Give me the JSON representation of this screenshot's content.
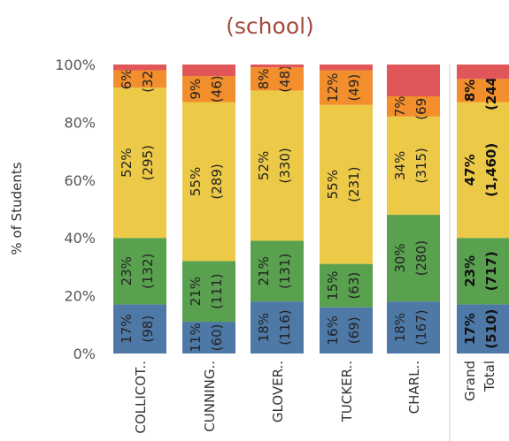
{
  "chart_data": {
    "type": "bar",
    "stacked": "percent",
    "title": "(school)",
    "ylabel": "% of Students",
    "ylim": [
      0,
      100
    ],
    "yticks": [
      "0%",
      "20%",
      "40%",
      "60%",
      "80%",
      "100%"
    ],
    "categories": [
      "COLLICOT..",
      "CUNNING..",
      "GLOVER..",
      "TUCKER..",
      "CHARL.."
    ],
    "total_label": [
      "Grand",
      "Total"
    ],
    "series_colors": [
      "#4e79a7",
      "#59a14f",
      "#edc948",
      "#f28e2b",
      "#e15759"
    ],
    "bars": [
      {
        "segments": [
          {
            "pct": 17,
            "label": "17%",
            "count": "(98)"
          },
          {
            "pct": 23,
            "label": "23%",
            "count": "(132)"
          },
          {
            "pct": 52,
            "label": "52%",
            "count": "(295)"
          },
          {
            "pct": 6,
            "label": "6%",
            "count": "(32)"
          },
          {
            "pct": 2,
            "label": "",
            "count": ""
          }
        ]
      },
      {
        "segments": [
          {
            "pct": 11,
            "label": "11%",
            "count": "(60)"
          },
          {
            "pct": 21,
            "label": "21%",
            "count": "(111)"
          },
          {
            "pct": 55,
            "label": "55%",
            "count": "(289)"
          },
          {
            "pct": 9,
            "label": "9%",
            "count": "(46)"
          },
          {
            "pct": 4,
            "label": "",
            "count": ""
          }
        ]
      },
      {
        "segments": [
          {
            "pct": 18,
            "label": "18%",
            "count": "(116)"
          },
          {
            "pct": 21,
            "label": "21%",
            "count": "(131)"
          },
          {
            "pct": 52,
            "label": "52%",
            "count": "(330)"
          },
          {
            "pct": 8,
            "label": "8%",
            "count": "(48)"
          },
          {
            "pct": 1,
            "label": "",
            "count": ""
          }
        ]
      },
      {
        "segments": [
          {
            "pct": 16,
            "label": "16%",
            "count": "(69)"
          },
          {
            "pct": 15,
            "label": "15%",
            "count": "(63)"
          },
          {
            "pct": 55,
            "label": "55%",
            "count": "(231)"
          },
          {
            "pct": 12,
            "label": "12%",
            "count": "(49)"
          },
          {
            "pct": 2,
            "label": "",
            "count": ""
          }
        ]
      },
      {
        "segments": [
          {
            "pct": 18,
            "label": "18%",
            "count": "(167)"
          },
          {
            "pct": 30,
            "label": "30%",
            "count": "(280)"
          },
          {
            "pct": 34,
            "label": "34%",
            "count": "(315)"
          },
          {
            "pct": 7,
            "label": "7%",
            "count": "(69)"
          },
          {
            "pct": 11,
            "label": "",
            "count": ""
          }
        ]
      }
    ],
    "total_bar": {
      "segments": [
        {
          "pct": 17,
          "label": "17%",
          "count": "(510)"
        },
        {
          "pct": 23,
          "label": "23%",
          "count": "(717)"
        },
        {
          "pct": 47,
          "label": "47%",
          "count": "(1,460)"
        },
        {
          "pct": 8,
          "label": "8%",
          "count": "(244)"
        },
        {
          "pct": 5,
          "label": "",
          "count": ""
        }
      ]
    },
    "gridlines": false,
    "legend": "none"
  }
}
